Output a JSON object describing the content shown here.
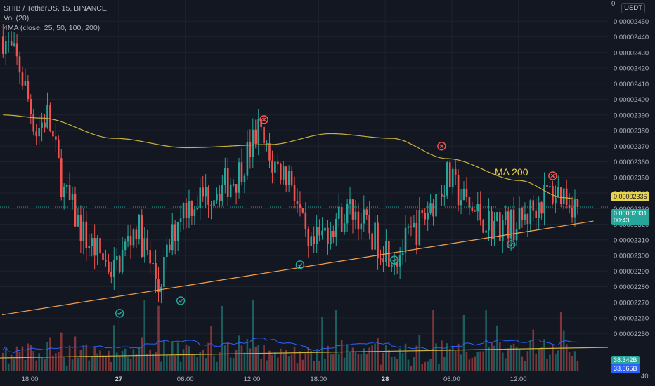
{
  "legend": {
    "symbol": "SHIB / TetherUS, 15, BINANCE",
    "volume": "Vol (20)",
    "ma": "4MA (close, 25, 50, 100, 200)"
  },
  "currency": "USDT",
  "annotation": "MA 200",
  "colors": {
    "bg": "#131722",
    "grid": "#1e222d",
    "up": "#26a69a",
    "down": "#ef5350",
    "ma200": "#c9b23a",
    "trendline": "#f7a04b",
    "vol_ma": "#2962ff",
    "marker_red": "#ef5350",
    "marker_green": "#26a69a"
  },
  "axis": {
    "y_ticks": [
      "0.00002450",
      "0.00002440",
      "0.00002430",
      "0.00002420",
      "0.00002410",
      "0.00002400",
      "0.00002390",
      "0.00002380",
      "0.00002370",
      "0.00002360",
      "0.00002350",
      "0.00002340",
      "0.00002330",
      "0.00002320",
      "0.00002310",
      "0.00002300",
      "0.00002290",
      "0.00002280",
      "0.00002270",
      "0.00002260",
      "0.00002250"
    ],
    "y_cut_labels": [
      "0",
      "40"
    ],
    "x_ticks": [
      {
        "label": "18:00",
        "bold": false
      },
      {
        "label": "27",
        "bold": true
      },
      {
        "label": "06:00",
        "bold": false
      },
      {
        "label": "12:00",
        "bold": false
      },
      {
        "label": "18:00",
        "bold": false
      },
      {
        "label": "28",
        "bold": true
      },
      {
        "label": "06:00",
        "bold": false
      },
      {
        "label": "12:00",
        "bold": false
      }
    ]
  },
  "price_badges": {
    "ma_value": "0.00002336",
    "last_price": "0.00002331",
    "countdown": "00:43",
    "vol_value": "38.342B",
    "vol_ma_value": "33.065B"
  },
  "chart_data": {
    "type": "candlestick",
    "ylim": [
      2.24e-05,
      2.46e-05
    ],
    "y_unit": "USDT",
    "candle_count": 208,
    "start_close": 2.44e-05,
    "path_keypoints": [
      {
        "i": 0,
        "p": 2.44e-05
      },
      {
        "i": 6,
        "p": 2.42e-05
      },
      {
        "i": 12,
        "p": 2.38e-05
      },
      {
        "i": 16,
        "p": 2.39e-05
      },
      {
        "i": 22,
        "p": 2.34e-05
      },
      {
        "i": 30,
        "p": 2.31e-05
      },
      {
        "i": 40,
        "p": 2.29e-05
      },
      {
        "i": 48,
        "p": 2.32e-05
      },
      {
        "i": 56,
        "p": 2.28e-05
      },
      {
        "i": 64,
        "p": 2.33e-05
      },
      {
        "i": 74,
        "p": 2.34e-05
      },
      {
        "i": 84,
        "p": 2.35e-05
      },
      {
        "i": 92,
        "p": 2.38e-05
      },
      {
        "i": 96,
        "p": 2.36e-05
      },
      {
        "i": 104,
        "p": 2.35e-05
      },
      {
        "i": 110,
        "p": 2.3e-05
      },
      {
        "i": 118,
        "p": 2.32e-05
      },
      {
        "i": 126,
        "p": 2.33e-05
      },
      {
        "i": 134,
        "p": 2.31e-05
      },
      {
        "i": 142,
        "p": 2.3e-05
      },
      {
        "i": 150,
        "p": 2.32e-05
      },
      {
        "i": 160,
        "p": 2.35e-05
      },
      {
        "i": 168,
        "p": 2.33e-05
      },
      {
        "i": 176,
        "p": 2.32e-05
      },
      {
        "i": 186,
        "p": 2.32e-05
      },
      {
        "i": 196,
        "p": 2.34e-05
      },
      {
        "i": 202,
        "p": 2.34e-05
      },
      {
        "i": 207,
        "p": 2.331e-05
      }
    ],
    "ma200_points": [
      {
        "i": 0,
        "p": 2.39e-05
      },
      {
        "i": 14,
        "p": 2.388e-05
      },
      {
        "i": 40,
        "p": 2.375e-05
      },
      {
        "i": 66,
        "p": 2.369e-05
      },
      {
        "i": 96,
        "p": 2.371e-05
      },
      {
        "i": 118,
        "p": 2.378e-05
      },
      {
        "i": 140,
        "p": 2.375e-05
      },
      {
        "i": 160,
        "p": 2.362e-05
      },
      {
        "i": 186,
        "p": 2.348e-05
      },
      {
        "i": 202,
        "p": 2.337e-05
      },
      {
        "i": 207,
        "p": 2.336e-05
      }
    ],
    "support_line": [
      {
        "i": 0,
        "p": 2.262e-05
      },
      {
        "i": 213,
        "p": 2.322e-05
      }
    ],
    "markers": [
      {
        "type": "sell",
        "i": 94,
        "p": 2.387e-05
      },
      {
        "type": "sell",
        "i": 158,
        "p": 2.37e-05
      },
      {
        "type": "sell",
        "i": 198,
        "p": 2.351e-05
      },
      {
        "type": "buy",
        "i": 42,
        "p": 2.263e-05
      },
      {
        "type": "buy",
        "i": 64,
        "p": 2.271e-05
      },
      {
        "type": "buy",
        "i": 107,
        "p": 2.294e-05
      },
      {
        "type": "buy",
        "i": 141,
        "p": 2.297e-05
      },
      {
        "type": "buy",
        "i": 183,
        "p": 2.307e-05
      }
    ]
  }
}
